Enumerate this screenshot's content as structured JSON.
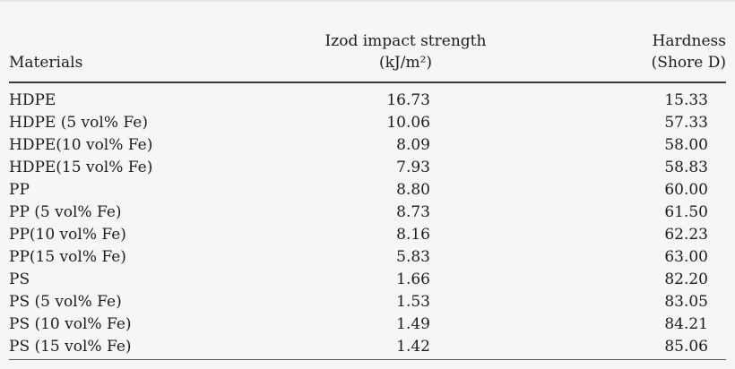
{
  "page": {
    "background_color": "#f6f6f6",
    "text_color": "#1c1c1c",
    "header_rule_color": "#3a3a3a",
    "bottom_rule_color": "#565656"
  },
  "table": {
    "header": {
      "col1": {
        "line1": "Materials"
      },
      "col2": {
        "line1": "Izod impact strength",
        "line2": "(kJ/m²)"
      },
      "col3": {
        "line1": "Hardness",
        "line2": "(Shore D)"
      }
    },
    "rows": [
      {
        "material": "HDPE",
        "izod": "16.73",
        "hardness": "15.33"
      },
      {
        "material": "HDPE (5 vol% Fe)",
        "izod": "10.06",
        "hardness": "57.33"
      },
      {
        "material": "HDPE(10 vol% Fe)",
        "izod": "8.09",
        "hardness": "58.00"
      },
      {
        "material": "HDPE(15 vol% Fe)",
        "izod": "7.93",
        "hardness": "58.83"
      },
      {
        "material": "PP",
        "izod": "8.80",
        "hardness": "60.00"
      },
      {
        "material": "PP (5 vol% Fe)",
        "izod": "8.73",
        "hardness": "61.50"
      },
      {
        "material": "PP(10 vol% Fe)",
        "izod": "8.16",
        "hardness": "62.23"
      },
      {
        "material": "PP(15 vol% Fe)",
        "izod": "5.83",
        "hardness": "63.00"
      },
      {
        "material": "PS",
        "izod": "1.66",
        "hardness": "82.20"
      },
      {
        "material": "PS (5 vol% Fe)",
        "izod": "1.53",
        "hardness": "83.05"
      },
      {
        "material": "PS (10 vol% Fe)",
        "izod": "1.49",
        "hardness": "84.21"
      },
      {
        "material": "PS (15 vol% Fe)",
        "izod": "1.42",
        "hardness": "85.06"
      }
    ]
  },
  "chart_data": {
    "type": "table",
    "columns": [
      "Materials",
      "Izod impact strength (kJ/m²)",
      "Hardness (Shore D)"
    ],
    "rows": [
      [
        "HDPE",
        16.73,
        15.33
      ],
      [
        "HDPE (5 vol% Fe)",
        10.06,
        57.33
      ],
      [
        "HDPE(10 vol% Fe)",
        8.09,
        58.0
      ],
      [
        "HDPE(15 vol% Fe)",
        7.93,
        58.83
      ],
      [
        "PP",
        8.8,
        60.0
      ],
      [
        "PP (5 vol% Fe)",
        8.73,
        61.5
      ],
      [
        "PP(10 vol% Fe)",
        8.16,
        62.23
      ],
      [
        "PP(15 vol% Fe)",
        5.83,
        63.0
      ],
      [
        "PS",
        1.66,
        82.2
      ],
      [
        "PS (5 vol% Fe)",
        1.53,
        83.05
      ],
      [
        "PS (10 vol% Fe)",
        1.49,
        84.21
      ],
      [
        "PS (15 vol% Fe)",
        1.42,
        85.06
      ]
    ]
  }
}
